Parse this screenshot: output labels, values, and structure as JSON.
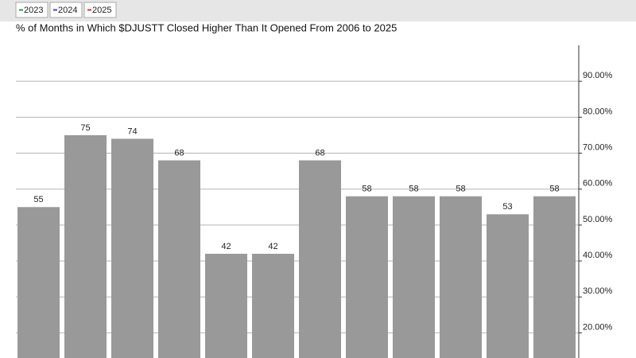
{
  "chart_data": {
    "type": "bar",
    "title": "% of Months in Which $DJUSTT Closed Higher Than It Opened From 2006 to 2025",
    "legend": [
      {
        "name": "2023",
        "color": "#2e9e3a"
      },
      {
        "name": "2024",
        "color": "#4a3fcf"
      },
      {
        "name": "2025",
        "color": "#e0302a"
      }
    ],
    "categories": [
      null,
      null,
      null,
      null,
      null,
      null,
      null,
      null,
      null,
      null,
      null,
      null
    ],
    "values": [
      55,
      75,
      74,
      68,
      42,
      42,
      68,
      58,
      58,
      58,
      53,
      58
    ],
    "color": "#999999",
    "ylim": [
      13,
      100
    ],
    "yticks": [
      {
        "value": 20,
        "label": "20.00%"
      },
      {
        "value": 30,
        "label": "30.00%"
      },
      {
        "value": 40,
        "label": "40.00%"
      },
      {
        "value": 50,
        "label": "50.00%"
      },
      {
        "value": 60,
        "label": "60.00%"
      },
      {
        "value": 70,
        "label": "70.00%"
      },
      {
        "value": 80,
        "label": "80.00%"
      },
      {
        "value": 90,
        "label": "90.00%"
      }
    ],
    "grid": true
  }
}
